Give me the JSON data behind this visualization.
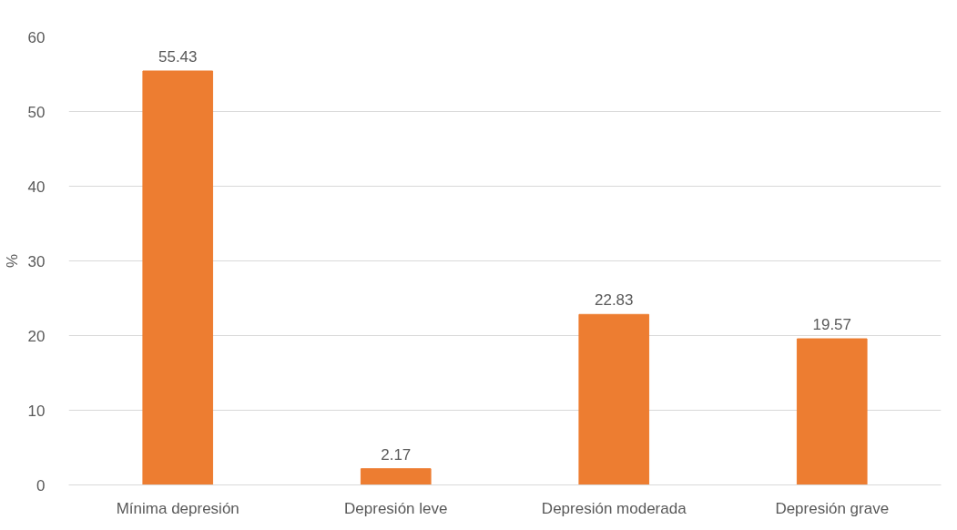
{
  "chart_data": {
    "type": "bar",
    "ylabel": "%",
    "categories": [
      "Mínima depresión",
      "Depresión leve",
      "Depresión moderada",
      "Depresión grave"
    ],
    "values": [
      55.43,
      2.17,
      22.83,
      19.57
    ],
    "color": "#ed7d31",
    "ylim": [
      0,
      60
    ],
    "yticks": [
      0,
      10,
      20,
      30,
      40,
      50,
      60
    ],
    "grid": "y",
    "data_labels": true
  }
}
